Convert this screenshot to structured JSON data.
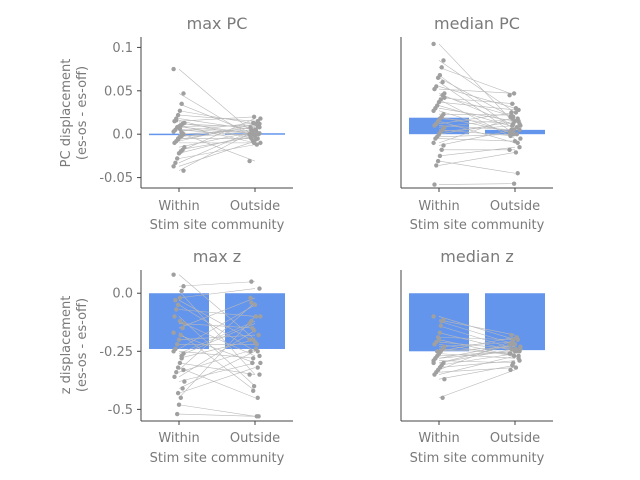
{
  "colors": {
    "bar": "#6495ed",
    "points": "#a0a0a0",
    "lines": "#b8b8b8",
    "text": "#7a7a7a",
    "axis": "#444444"
  },
  "chart_data": [
    {
      "type": "bar",
      "title": "max PC",
      "xlabel": "Stim site community",
      "ylabel": [
        "PC displacement",
        "(es-os - es-off)"
      ],
      "categories": [
        "Within",
        "Outside"
      ],
      "values": [
        -0.0005,
        0.0005
      ],
      "ylim": [
        -0.062,
        0.112
      ],
      "yticks": [
        0.1,
        0.05,
        0.0,
        -0.05
      ],
      "yticklabels": [
        "0.1",
        "0.05",
        "0.0",
        "-0.05"
      ],
      "pairs": [
        [
          0.075,
          0.0
        ],
        [
          0.047,
          -0.005
        ],
        [
          0.035,
          0.0
        ],
        [
          0.027,
          0.012
        ],
        [
          0.022,
          0.015
        ],
        [
          0.018,
          0.005
        ],
        [
          0.015,
          0.02
        ],
        [
          0.013,
          0.0
        ],
        [
          0.012,
          0.008
        ],
        [
          0.01,
          -0.01
        ],
        [
          0.009,
          0.01
        ],
        [
          0.008,
          0.002
        ],
        [
          0.005,
          -0.002
        ],
        [
          0.003,
          0.013
        ],
        [
          0.0,
          0.005
        ],
        [
          -0.002,
          0.0
        ],
        [
          -0.003,
          0.008
        ],
        [
          -0.005,
          -0.005
        ],
        [
          -0.008,
          0.012
        ],
        [
          -0.01,
          -0.01
        ],
        [
          -0.015,
          0.003
        ],
        [
          -0.018,
          -0.003
        ],
        [
          -0.02,
          0.018
        ],
        [
          -0.022,
          0.0
        ],
        [
          -0.028,
          -0.012
        ],
        [
          -0.033,
          0.005
        ],
        [
          -0.037,
          -0.008
        ],
        [
          -0.042,
          0.004
        ],
        [
          0.002,
          -0.031
        ],
        [
          0.006,
          0.001
        ],
        [
          -0.006,
          0.009
        ],
        [
          0.016,
          -0.006
        ]
      ]
    },
    {
      "type": "bar",
      "title": "median PC",
      "xlabel": "Stim site community",
      "categories": [
        "Within",
        "Outside"
      ],
      "values": [
        0.019,
        0.005
      ],
      "ylim": [
        -0.062,
        0.112
      ],
      "pairs": [
        [
          0.104,
          0.012
        ],
        [
          0.085,
          0.025
        ],
        [
          0.077,
          0.045
        ],
        [
          0.068,
          0.005
        ],
        [
          0.065,
          0.018
        ],
        [
          0.055,
          0.03
        ],
        [
          0.052,
          0.047
        ],
        [
          0.047,
          0.01
        ],
        [
          0.045,
          0.02
        ],
        [
          0.04,
          -0.005
        ],
        [
          0.037,
          0.028
        ],
        [
          0.033,
          0.008
        ],
        [
          0.03,
          0.015
        ],
        [
          0.027,
          0.0
        ],
        [
          0.023,
          0.022
        ],
        [
          0.02,
          0.002
        ],
        [
          0.018,
          0.012
        ],
        [
          0.015,
          -0.01
        ],
        [
          0.012,
          0.025
        ],
        [
          0.01,
          0.005
        ],
        [
          0.008,
          0.018
        ],
        [
          0.005,
          -0.002
        ],
        [
          0.003,
          0.01
        ],
        [
          0.0,
          0.015
        ],
        [
          -0.003,
          0.0
        ],
        [
          -0.005,
          -0.008
        ],
        [
          -0.01,
          0.02
        ],
        [
          -0.013,
          0.005
        ],
        [
          -0.018,
          -0.018
        ],
        [
          -0.025,
          -0.015
        ],
        [
          -0.031,
          -0.045
        ],
        [
          -0.036,
          -0.021
        ],
        [
          -0.058,
          -0.057
        ],
        [
          0.042,
          0.035
        ],
        [
          0.06,
          0.0
        ]
      ]
    },
    {
      "type": "bar",
      "title": "max z",
      "xlabel": "Stim site community",
      "ylabel": [
        "z displacement",
        "(es-os - es-off)"
      ],
      "categories": [
        "Within",
        "Outside"
      ],
      "values": [
        -0.24,
        -0.24
      ],
      "ylim": [
        -0.55,
        0.1
      ],
      "yticks": [
        0.0,
        -0.25,
        -0.5
      ],
      "yticklabels": [
        "0.0",
        "-0.25",
        "-0.5"
      ],
      "pairs": [
        [
          0.08,
          -0.2
        ],
        [
          0.03,
          0.05
        ],
        [
          0.01,
          -0.35
        ],
        [
          -0.02,
          0.02
        ],
        [
          -0.05,
          -0.25
        ],
        [
          -0.07,
          -0.1
        ],
        [
          -0.1,
          -0.4
        ],
        [
          -0.13,
          -0.15
        ],
        [
          -0.15,
          -0.02
        ],
        [
          -0.18,
          -0.3
        ],
        [
          -0.2,
          -0.18
        ],
        [
          -0.22,
          -0.22
        ],
        [
          -0.24,
          -0.05
        ],
        [
          -0.25,
          -0.28
        ],
        [
          -0.26,
          -0.12
        ],
        [
          -0.28,
          -0.2
        ],
        [
          -0.3,
          -0.35
        ],
        [
          -0.32,
          -0.45
        ],
        [
          -0.34,
          -0.24
        ],
        [
          -0.36,
          -0.16
        ],
        [
          -0.38,
          -0.3
        ],
        [
          -0.41,
          -0.25
        ],
        [
          -0.45,
          -0.1
        ],
        [
          -0.48,
          -0.53
        ],
        [
          -0.52,
          -0.53
        ],
        [
          -0.03,
          -0.21
        ],
        [
          -0.17,
          -0.42
        ],
        [
          -0.33,
          -0.04
        ],
        [
          -0.27,
          -0.13
        ],
        [
          -0.12,
          -0.27
        ],
        [
          -0.43,
          -0.32
        ]
      ]
    },
    {
      "type": "bar",
      "title": "median z",
      "xlabel": "Stim site community",
      "categories": [
        "Within",
        "Outside"
      ],
      "values": [
        -0.25,
        -0.245
      ],
      "ylim": [
        -0.55,
        0.1
      ],
      "pairs": [
        [
          -0.1,
          -0.2
        ],
        [
          -0.115,
          -0.18
        ],
        [
          -0.12,
          -0.22
        ],
        [
          -0.17,
          -0.25
        ],
        [
          -0.19,
          -0.2
        ],
        [
          -0.21,
          -0.24
        ],
        [
          -0.22,
          -0.27
        ],
        [
          -0.23,
          -0.21
        ],
        [
          -0.24,
          -0.26
        ],
        [
          -0.25,
          -0.23
        ],
        [
          -0.26,
          -0.28
        ],
        [
          -0.27,
          -0.25
        ],
        [
          -0.28,
          -0.22
        ],
        [
          -0.29,
          -0.3
        ],
        [
          -0.3,
          -0.24
        ],
        [
          -0.31,
          -0.26
        ],
        [
          -0.32,
          -0.29
        ],
        [
          -0.33,
          -0.2
        ],
        [
          -0.34,
          -0.32
        ],
        [
          -0.35,
          -0.27
        ],
        [
          -0.37,
          -0.31
        ],
        [
          -0.45,
          -0.33
        ],
        [
          -0.14,
          -0.24
        ],
        [
          -0.2,
          -0.27
        ],
        [
          -0.25,
          -0.19
        ],
        [
          -0.28,
          -0.25
        ],
        [
          -0.3,
          -0.22
        ]
      ]
    }
  ]
}
